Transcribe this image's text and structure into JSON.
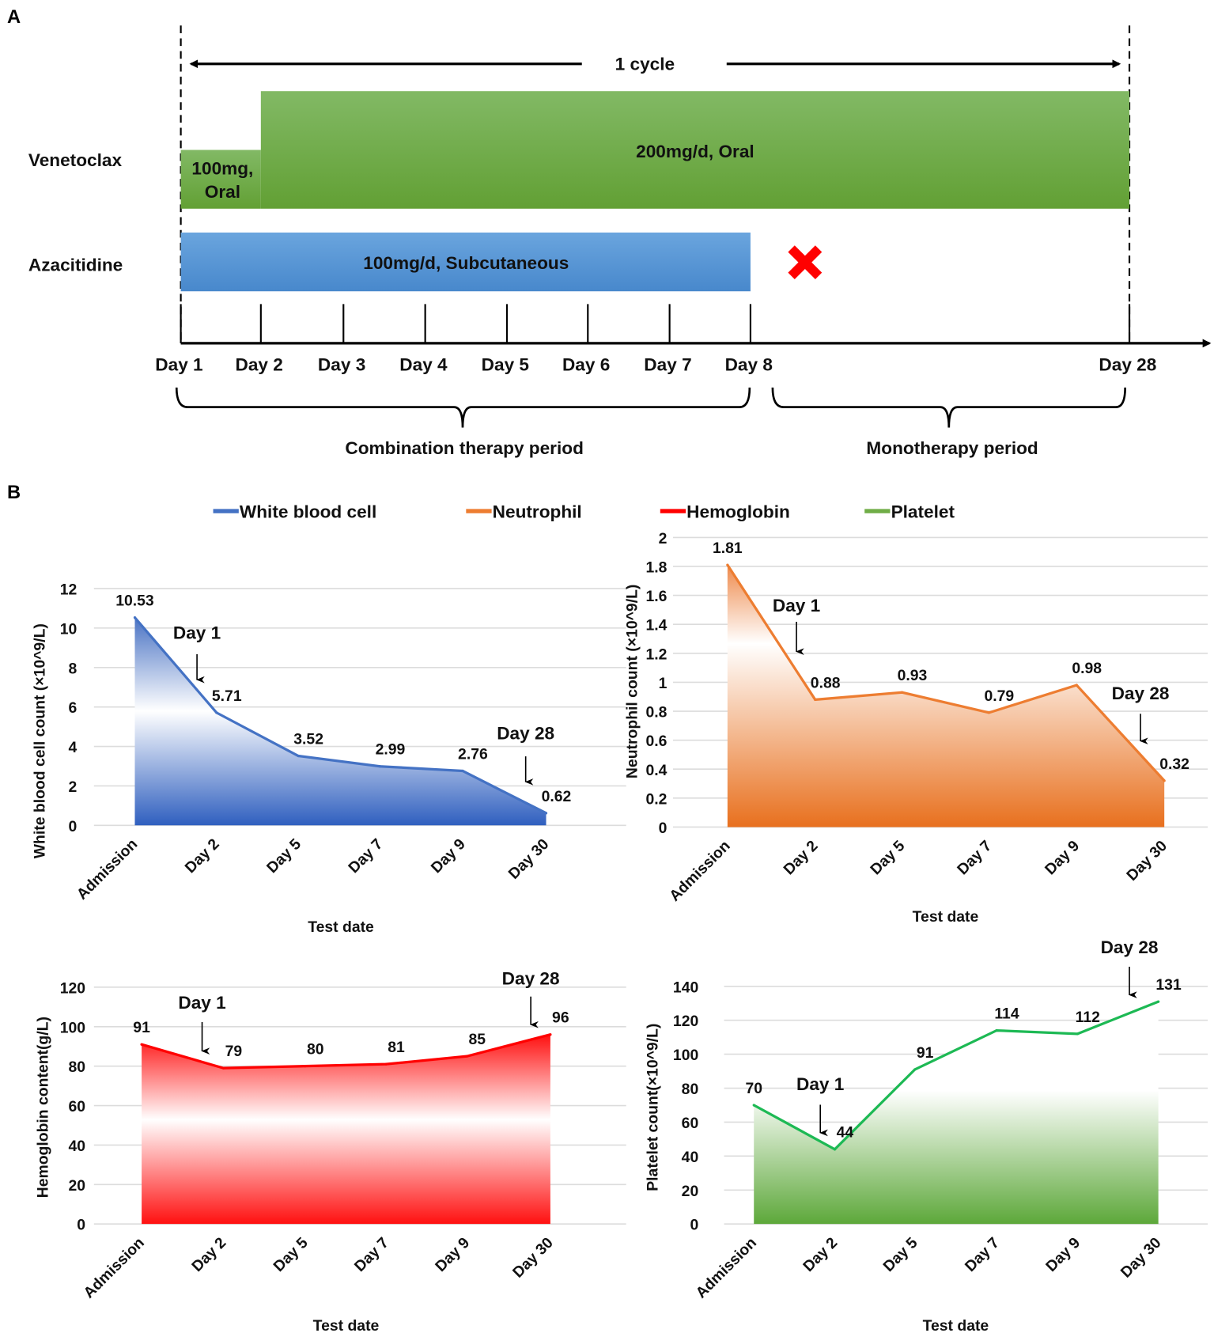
{
  "panel_a": {
    "label": "A",
    "cycle_label": "1 cycle",
    "drugs": [
      {
        "name": "Venetoclax",
        "segments": [
          "100mg,",
          "Oral",
          "200mg/d, Oral"
        ]
      },
      {
        "name": "Azacitidine",
        "segments": [
          "100mg/d, Subcutaneous"
        ]
      }
    ],
    "stop_icon": "red-x-icon",
    "days": [
      "Day 1",
      "Day 2",
      "Day 3",
      "Day 4",
      "Day 5",
      "Day 6",
      "Day 7",
      "Day 8",
      "Day 28"
    ],
    "periods": [
      "Combination therapy period",
      "Monotherapy period"
    ],
    "colors": {
      "venetoclax": "#70ad47",
      "azacitidine": "#5b9bd5",
      "stop": "#ff0000"
    }
  },
  "panel_b": {
    "label": "B",
    "legend": [
      {
        "name": "White blood cell",
        "color": "#4472c4"
      },
      {
        "name": "Neutrophil",
        "color": "#ed7d31"
      },
      {
        "name": "Hemoglobin",
        "color": "#ff0000"
      },
      {
        "name": "Platelet",
        "color": "#70ad47"
      }
    ]
  },
  "chart_data": [
    {
      "type": "area",
      "title": "White blood cell",
      "categories": [
        "Admission",
        "Day 2",
        "Day 5",
        "Day 7",
        "Day 9",
        "Day 30"
      ],
      "values": [
        10.53,
        5.71,
        3.52,
        2.99,
        2.76,
        0.62
      ],
      "data_labels": [
        "10.53",
        "5.71",
        "3.52",
        "2.99",
        "2.76",
        "0.62"
      ],
      "ylabel": "White blood cell count (×10^9/L)",
      "xlabel": "Test date",
      "ylim": [
        0,
        12
      ],
      "yticks": [
        "0",
        "2",
        "4",
        "6",
        "8",
        "10",
        "12"
      ],
      "annotations": [
        {
          "text": "Day 1",
          "at": "Day 2"
        },
        {
          "text": "Day 28",
          "at": "Day 30"
        }
      ],
      "color": "#4472c4",
      "grid": true
    },
    {
      "type": "area",
      "title": "Neutrophil",
      "categories": [
        "Admission",
        "Day 2",
        "Day 5",
        "Day 7",
        "Day 9",
        "Day 30"
      ],
      "values": [
        1.81,
        0.88,
        0.93,
        0.79,
        0.98,
        0.32
      ],
      "data_labels": [
        "1.81",
        "0.88",
        "0.93",
        "0.79",
        "0.98",
        "0.32"
      ],
      "ylabel": "Neutrophil count (×10^9/L)",
      "xlabel": "Test date",
      "ylim": [
        0,
        2
      ],
      "yticks": [
        "0",
        "0.2",
        "0.4",
        "0.6",
        "0.8",
        "1",
        "1.2",
        "1.4",
        "1.6",
        "1.8",
        "2"
      ],
      "annotations": [
        {
          "text": "Day 1",
          "at": "Day 2"
        },
        {
          "text": "Day 28",
          "at": "Day 30"
        }
      ],
      "color": "#ed7d31",
      "grid": true
    },
    {
      "type": "area",
      "title": "Hemoglobin",
      "categories": [
        "Admission",
        "Day 2",
        "Day 5",
        "Day 7",
        "Day 9",
        "Day 30"
      ],
      "values": [
        91,
        79,
        80,
        81,
        85,
        96
      ],
      "data_labels": [
        "91",
        "79",
        "80",
        "81",
        "85",
        "96"
      ],
      "ylabel": "Hemoglobin content(g/L)",
      "xlabel": "Test date",
      "ylim": [
        0,
        120
      ],
      "yticks": [
        "0",
        "20",
        "40",
        "60",
        "80",
        "100",
        "120"
      ],
      "annotations": [
        {
          "text": "Day 1",
          "at": "Day 2"
        },
        {
          "text": "Day 28",
          "at": "Day 30"
        }
      ],
      "color": "#ff0000",
      "grid": true
    },
    {
      "type": "area",
      "title": "Platelet",
      "categories": [
        "Admission",
        "Day 2",
        "Day 5",
        "Day 7",
        "Day 9",
        "Day 30"
      ],
      "values": [
        70,
        44,
        91,
        114,
        112,
        131
      ],
      "data_labels": [
        "70",
        "44",
        "91",
        "114",
        "112",
        "131"
      ],
      "ylabel": "Platelet count(×10^9/L)",
      "xlabel": "Test date",
      "ylim": [
        0,
        140
      ],
      "yticks": [
        "0",
        "20",
        "40",
        "60",
        "80",
        "100",
        "120",
        "140"
      ],
      "annotations": [
        {
          "text": "Day 1",
          "at": "Day 2"
        },
        {
          "text": "Day 28",
          "at": "Day 30"
        }
      ],
      "color": "#1db954",
      "grid": true
    }
  ]
}
